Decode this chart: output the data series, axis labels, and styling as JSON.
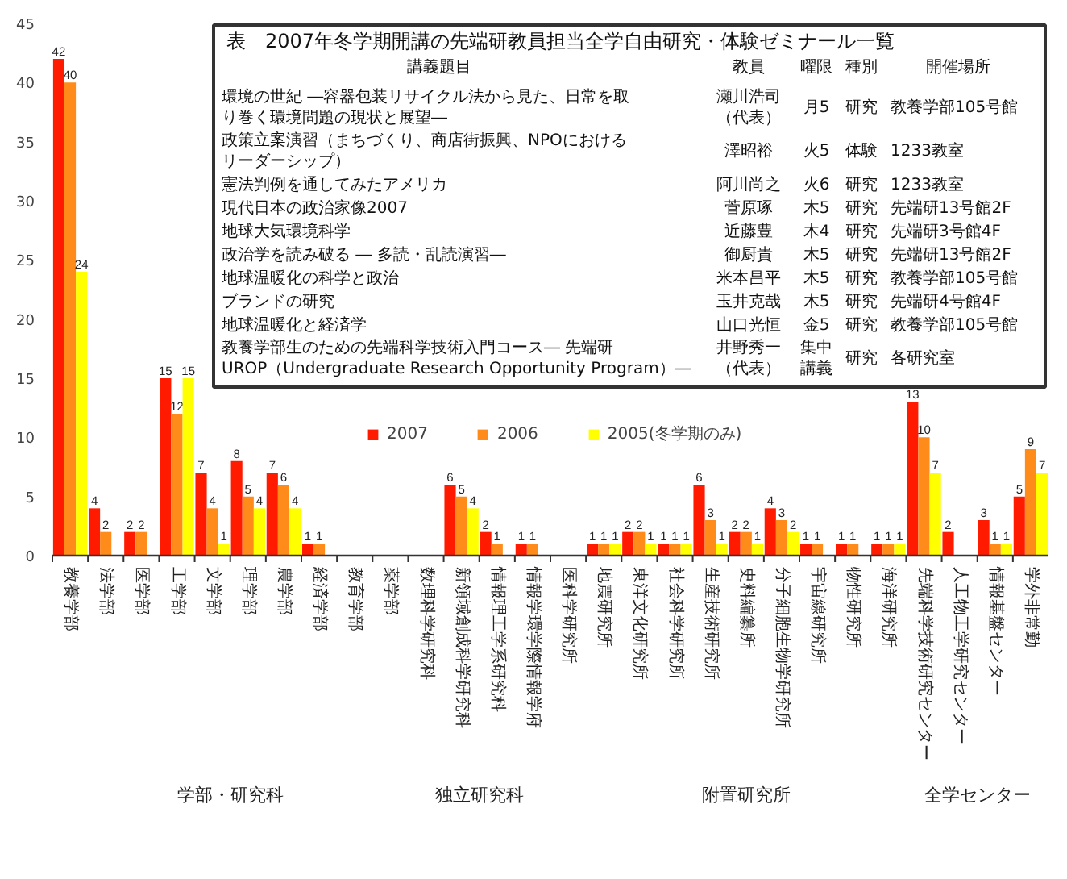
{
  "chart_data": {
    "type": "bar",
    "categories": [
      "教養学部",
      "法学部",
      "医学部",
      "工学部",
      "文学部",
      "理学部",
      "農学部",
      "経済学部",
      "教育学部",
      "薬学部",
      "数理科学研究科",
      "新領域創成科学研究科",
      "情報理工学系研究科",
      "情報学環学際情報学府",
      "医科学研究所",
      "地震研究所",
      "東洋文化研究所",
      "社会科学研究所",
      "生産技術研究所",
      "史料編纂所",
      "分子細胞生物学研究所",
      "宇宙線研究所",
      "物性研究所",
      "海洋研究所",
      "先端科学技術研究センター",
      "人工物工学研究センター",
      "情報基盤センター",
      "学外非常勤"
    ],
    "series": [
      {
        "name": "2007",
        "color": "#ff1a00",
        "values": [
          42,
          4,
          2,
          15,
          7,
          8,
          7,
          1,
          null,
          null,
          null,
          6,
          2,
          1,
          null,
          1,
          2,
          1,
          6,
          2,
          4,
          1,
          1,
          1,
          13,
          2,
          3,
          5
        ]
      },
      {
        "name": "2006",
        "color": "#ff8c1a",
        "values": [
          40,
          2,
          2,
          12,
          4,
          5,
          6,
          1,
          null,
          null,
          null,
          5,
          1,
          1,
          null,
          1,
          2,
          1,
          3,
          2,
          3,
          1,
          1,
          1,
          10,
          null,
          1,
          9
        ]
      },
      {
        "name": "2005(冬学期のみ)",
        "color": "#ffff00",
        "values": [
          24,
          null,
          null,
          15,
          1,
          4,
          4,
          null,
          null,
          null,
          null,
          4,
          null,
          null,
          null,
          1,
          1,
          1,
          1,
          1,
          2,
          null,
          null,
          1,
          7,
          null,
          1,
          7
        ]
      }
    ],
    "ylim": [
      0,
      45
    ],
    "yticks": [
      0,
      5,
      10,
      15,
      20,
      25,
      30,
      35,
      40,
      45
    ],
    "grid": false,
    "legend": "bottom right",
    "data_labels": true,
    "annotations": [
      "学部・研究科",
      "独立研究科",
      "附置研究所",
      "全学センター",
      "表　2007年冬学期開講の先端研教員担当全学自由研究・体験ゼミナール一覧",
      "講義題目",
      "教員",
      "曜限",
      "種別",
      "開催場所",
      "環境の世紀 ―容器包装リサイクル法から見た、日常を取り巻く環境問題の現状と展望―",
      "瀬川浩司（代表）",
      "月5",
      "研究",
      "教養学部105号館",
      "政策立案演習（まちづくり、商店街振興、NPOにおけるリーダーシップ）",
      "澤昭裕",
      "火5",
      "体験",
      "1233教室",
      "憲法判例を通してみたアメリカ",
      "阿川尚之",
      "火6",
      "研究",
      "1233教室",
      "現代日本の政治家像2007",
      "菅原琢",
      "木5",
      "研究",
      "先端研13号館2F",
      "地球大気環境科学",
      "近藤豊",
      "木4",
      "研究",
      "先端研3号館4F",
      "政治学を読み破る ― 多読・乱読演習―",
      "御厨貴",
      "木5",
      "研究",
      "先端研13号館2F",
      "地球温暖化の科学と政治",
      "米本昌平",
      "木5",
      "研究",
      "教養学部105号館",
      "ブランドの研究",
      "玉井克哉",
      "木5",
      "研究",
      "先端研4号館4F",
      "地球温暖化と経済学",
      "山口光恒",
      "金5",
      "研究",
      "教養学部105号館",
      "教養学部生のための先端科学技術入門コース― 先端研UROP（Undergraduate Research Opportunity Program）―",
      "井野秀一（代表）",
      "集中講義",
      "研究",
      "各研究室"
    ]
  }
}
